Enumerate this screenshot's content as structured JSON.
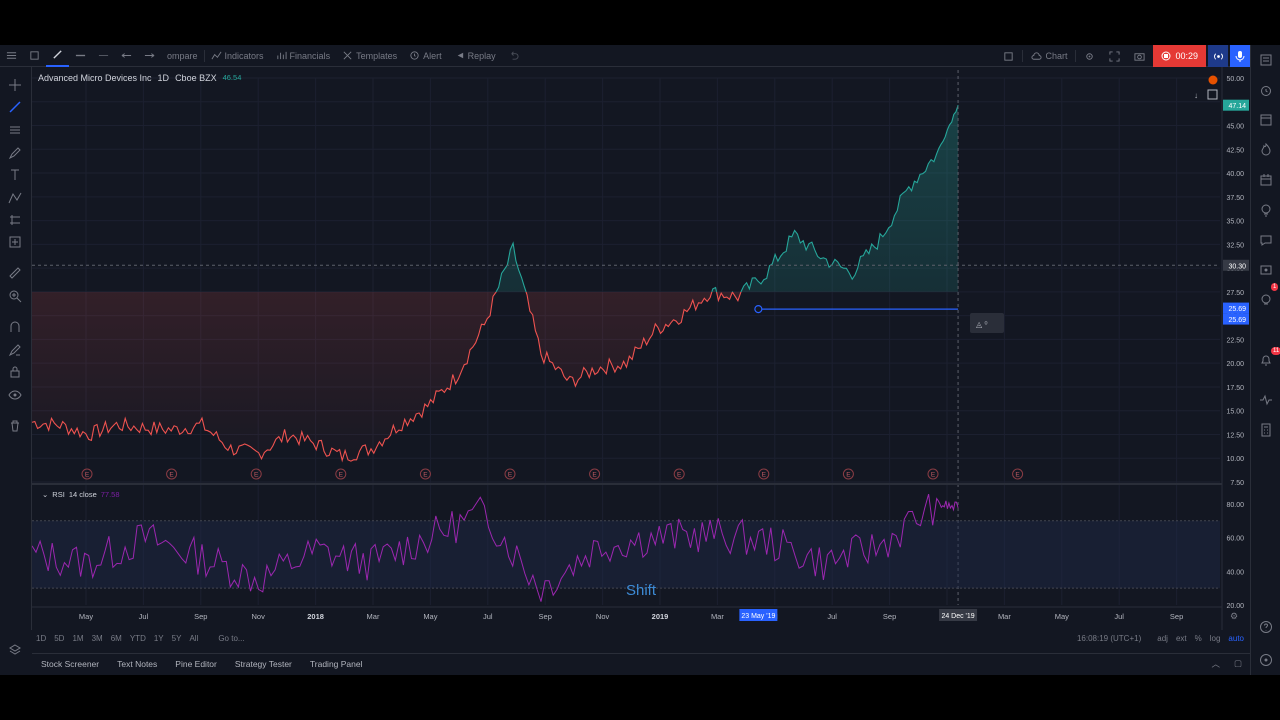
{
  "toolbar": {
    "items": [
      "ompare",
      "Indicators",
      "Financials",
      "Templates",
      "Alert",
      "Replay"
    ],
    "chart_label": "Chart",
    "rec_time": "00:29"
  },
  "legend": {
    "symbol": "Advanced Micro Devices Inc",
    "interval": "1D",
    "exchange": "Cboe BZX",
    "value": "46.54"
  },
  "rsi": {
    "label": "RSI",
    "params": "14 close",
    "value": "77.58"
  },
  "overlay": {
    "shift_text": "Shift"
  },
  "price_axis": {
    "ticks": [
      "50.00",
      "47.50",
      "45.00",
      "42.50",
      "40.00",
      "37.50",
      "35.00",
      "32.50",
      "30.00",
      "27.50",
      "25.00",
      "22.50",
      "20.00",
      "17.50",
      "15.00",
      "12.50",
      "10.00",
      "7.50"
    ],
    "last_price": "47.14",
    "crosshair_price": "30.30",
    "line_label_1": "25.69",
    "line_label_2": "25.69"
  },
  "rsi_axis": {
    "ticks": [
      "80.00",
      "60.00",
      "40.00",
      "20.00"
    ]
  },
  "time_axis": {
    "labels": [
      "May",
      "Jul",
      "Sep",
      "Nov",
      "2018",
      "Mar",
      "May",
      "Jul",
      "Sep",
      "Nov",
      "2019",
      "Mar",
      "M",
      "Jul",
      "Sep",
      "Nov",
      "Mar",
      "May",
      "Jul",
      "Sep"
    ],
    "highlight_1": "23 May '19",
    "highlight_2": "24 Dec '19"
  },
  "earnings_marker": "E",
  "range_bar": {
    "ranges": [
      "1D",
      "5D",
      "1M",
      "3M",
      "6M",
      "YTD",
      "1Y",
      "5Y",
      "All"
    ],
    "goto": "Go to...",
    "time": "16:08:19 (UTC+1)",
    "opts": [
      "adj",
      "ext",
      "%",
      "log",
      "auto"
    ]
  },
  "bottom_tabs": [
    "Stock Screener",
    "Text Notes",
    "Pine Editor",
    "Strategy Tester",
    "Trading Panel"
  ],
  "badges": {
    "alerts": "1",
    "notifications": "11"
  },
  "colors": {
    "background": "#131722",
    "down": "#ef5350",
    "up": "#26a69a",
    "rsi": "#9c27b0",
    "accent": "#2962ff",
    "record": "#e53935"
  },
  "chart_data": {
    "type": "area",
    "x_range": [
      "2017-04-01",
      "2020-10-01"
    ],
    "ylim": [
      7.5,
      50
    ],
    "baseline": 27.5,
    "series": [
      {
        "x": [
          "2017-04-01",
          "2017-05-01",
          "2017-06-01",
          "2017-07-01",
          "2017-08-01",
          "2017-09-01",
          "2017-10-01",
          "2017-11-01",
          "2017-12-01",
          "2018-01-01",
          "2018-02-01",
          "2018-03-01",
          "2018-04-01",
          "2018-05-01",
          "2018-06-01",
          "2018-07-01",
          "2018-08-01",
          "2018-09-01",
          "2018-10-01",
          "2018-11-01",
          "2018-12-01",
          "2019-01-01",
          "2019-02-01",
          "2019-03-01",
          "2019-04-01",
          "2019-05-01",
          "2019-06-01",
          "2019-07-01",
          "2019-08-01",
          "2019-09-01",
          "2019-10-01",
          "2019-11-01",
          "2019-12-01",
          "2019-12-24"
        ],
        "values": [
          13.8,
          13.5,
          12.5,
          13.5,
          13.2,
          13.0,
          13.5,
          11.0,
          10.5,
          12.5,
          11.5,
          10.2,
          11.0,
          13.5,
          15.5,
          18.5,
          24.0,
          32.0,
          21.0,
          18.0,
          19.5,
          20.0,
          23.5,
          25.0,
          27.5,
          27.0,
          29.5,
          33.5,
          31.0,
          29.5,
          33.0,
          38.5,
          42.0,
          47.14
        ]
      }
    ],
    "rsi": {
      "name": "RSI",
      "ylim": [
        20,
        90
      ],
      "bands": [
        30,
        70
      ],
      "x": [
        "2017-04-01",
        "2017-06-01",
        "2017-08-01",
        "2017-10-01",
        "2017-12-01",
        "2018-02-01",
        "2018-04-01",
        "2018-06-01",
        "2018-08-01",
        "2018-10-01",
        "2018-12-01",
        "2019-02-01",
        "2019-04-01",
        "2019-06-01",
        "2019-08-01",
        "2019-10-01",
        "2019-12-01",
        "2019-12-24"
      ],
      "values": [
        50,
        45,
        60,
        48,
        35,
        52,
        45,
        60,
        75,
        30,
        55,
        60,
        62,
        58,
        45,
        55,
        80,
        77.58
      ]
    },
    "highlight_line": {
      "value": 25.69,
      "from": "2019-05-23",
      "to": "2019-12-24"
    }
  }
}
